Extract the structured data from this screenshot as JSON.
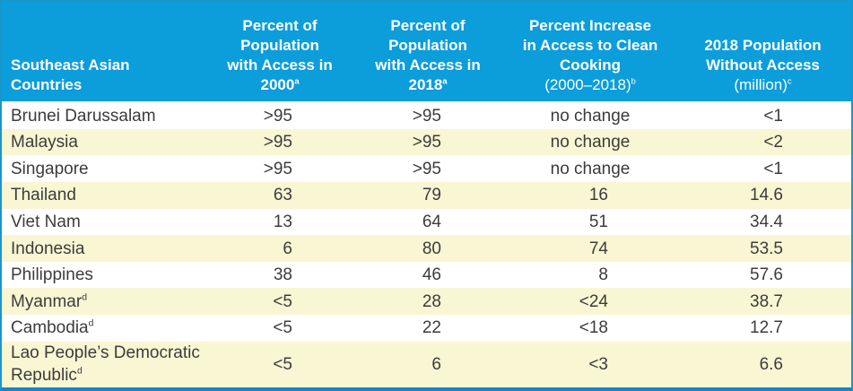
{
  "colors": {
    "header_bg": "#0C9DDB",
    "header_text": "#FFFFFF",
    "row_alt_bg": "#F9F6D4",
    "body_text": "#3C3C3C",
    "border": "#1A96C8",
    "border_bottom": "#1C84C4"
  },
  "table": {
    "header": [
      {
        "lines": [
          {
            "t": "Southeast Asian",
            "bold": true
          },
          {
            "t": "Countries",
            "bold": true
          }
        ]
      },
      {
        "lines": [
          {
            "t": "Percent of",
            "bold": true
          },
          {
            "t": "Population",
            "bold": true
          },
          {
            "t": "with Access in",
            "bold": true
          },
          {
            "t": "2000",
            "sup": "a",
            "bold": true
          }
        ]
      },
      {
        "lines": [
          {
            "t": "Percent of",
            "bold": true
          },
          {
            "t": "Population",
            "bold": true
          },
          {
            "t": "with Access in",
            "bold": true
          },
          {
            "t": "2018",
            "sup": "a",
            "bold": true
          }
        ]
      },
      {
        "lines": [
          {
            "t": "Percent Increase",
            "bold": true
          },
          {
            "t": "in Access to Clean",
            "bold": true
          },
          {
            "t": "Cooking",
            "bold": true
          },
          {
            "t": "(2000–2018)",
            "sup": "b",
            "bold": false
          }
        ]
      },
      {
        "lines": [
          {
            "t": "2018 Population",
            "bold": true
          },
          {
            "t": "Without Access",
            "bold": true
          },
          {
            "t": "(million)",
            "sup": "c",
            "bold": false
          }
        ]
      }
    ],
    "rows": [
      {
        "country": {
          "t": "Brunei Darussalam",
          "sup": ""
        },
        "values": [
          ">95",
          ">95",
          "no change",
          "<1"
        ]
      },
      {
        "country": {
          "t": "Malaysia",
          "sup": ""
        },
        "values": [
          ">95",
          ">95",
          "no change",
          "<2"
        ]
      },
      {
        "country": {
          "t": "Singapore",
          "sup": ""
        },
        "values": [
          ">95",
          ">95",
          "no change",
          "<1"
        ]
      },
      {
        "country": {
          "t": "Thailand",
          "sup": ""
        },
        "values": [
          "63",
          "79",
          "16",
          "14.6"
        ]
      },
      {
        "country": {
          "t": "Viet Nam",
          "sup": ""
        },
        "values": [
          "13",
          "64",
          "51",
          "34.4"
        ]
      },
      {
        "country": {
          "t": "Indonesia",
          "sup": ""
        },
        "values": [
          "6",
          "80",
          "74",
          "53.5"
        ]
      },
      {
        "country": {
          "t": "Philippines",
          "sup": ""
        },
        "values": [
          "38",
          "46",
          "8",
          "57.6"
        ]
      },
      {
        "country": {
          "t": "Myanmar",
          "sup": "d"
        },
        "values": [
          "<5",
          "28",
          "<24",
          "38.7"
        ]
      },
      {
        "country": {
          "t": "Cambodia",
          "sup": "d"
        },
        "values": [
          "<5",
          "22",
          "<18",
          "12.7"
        ]
      },
      {
        "country": {
          "t": "Lao People’s Democratic Republic",
          "sup": "d"
        },
        "values": [
          "<5",
          "6",
          "<3",
          "6.6"
        ]
      }
    ]
  }
}
